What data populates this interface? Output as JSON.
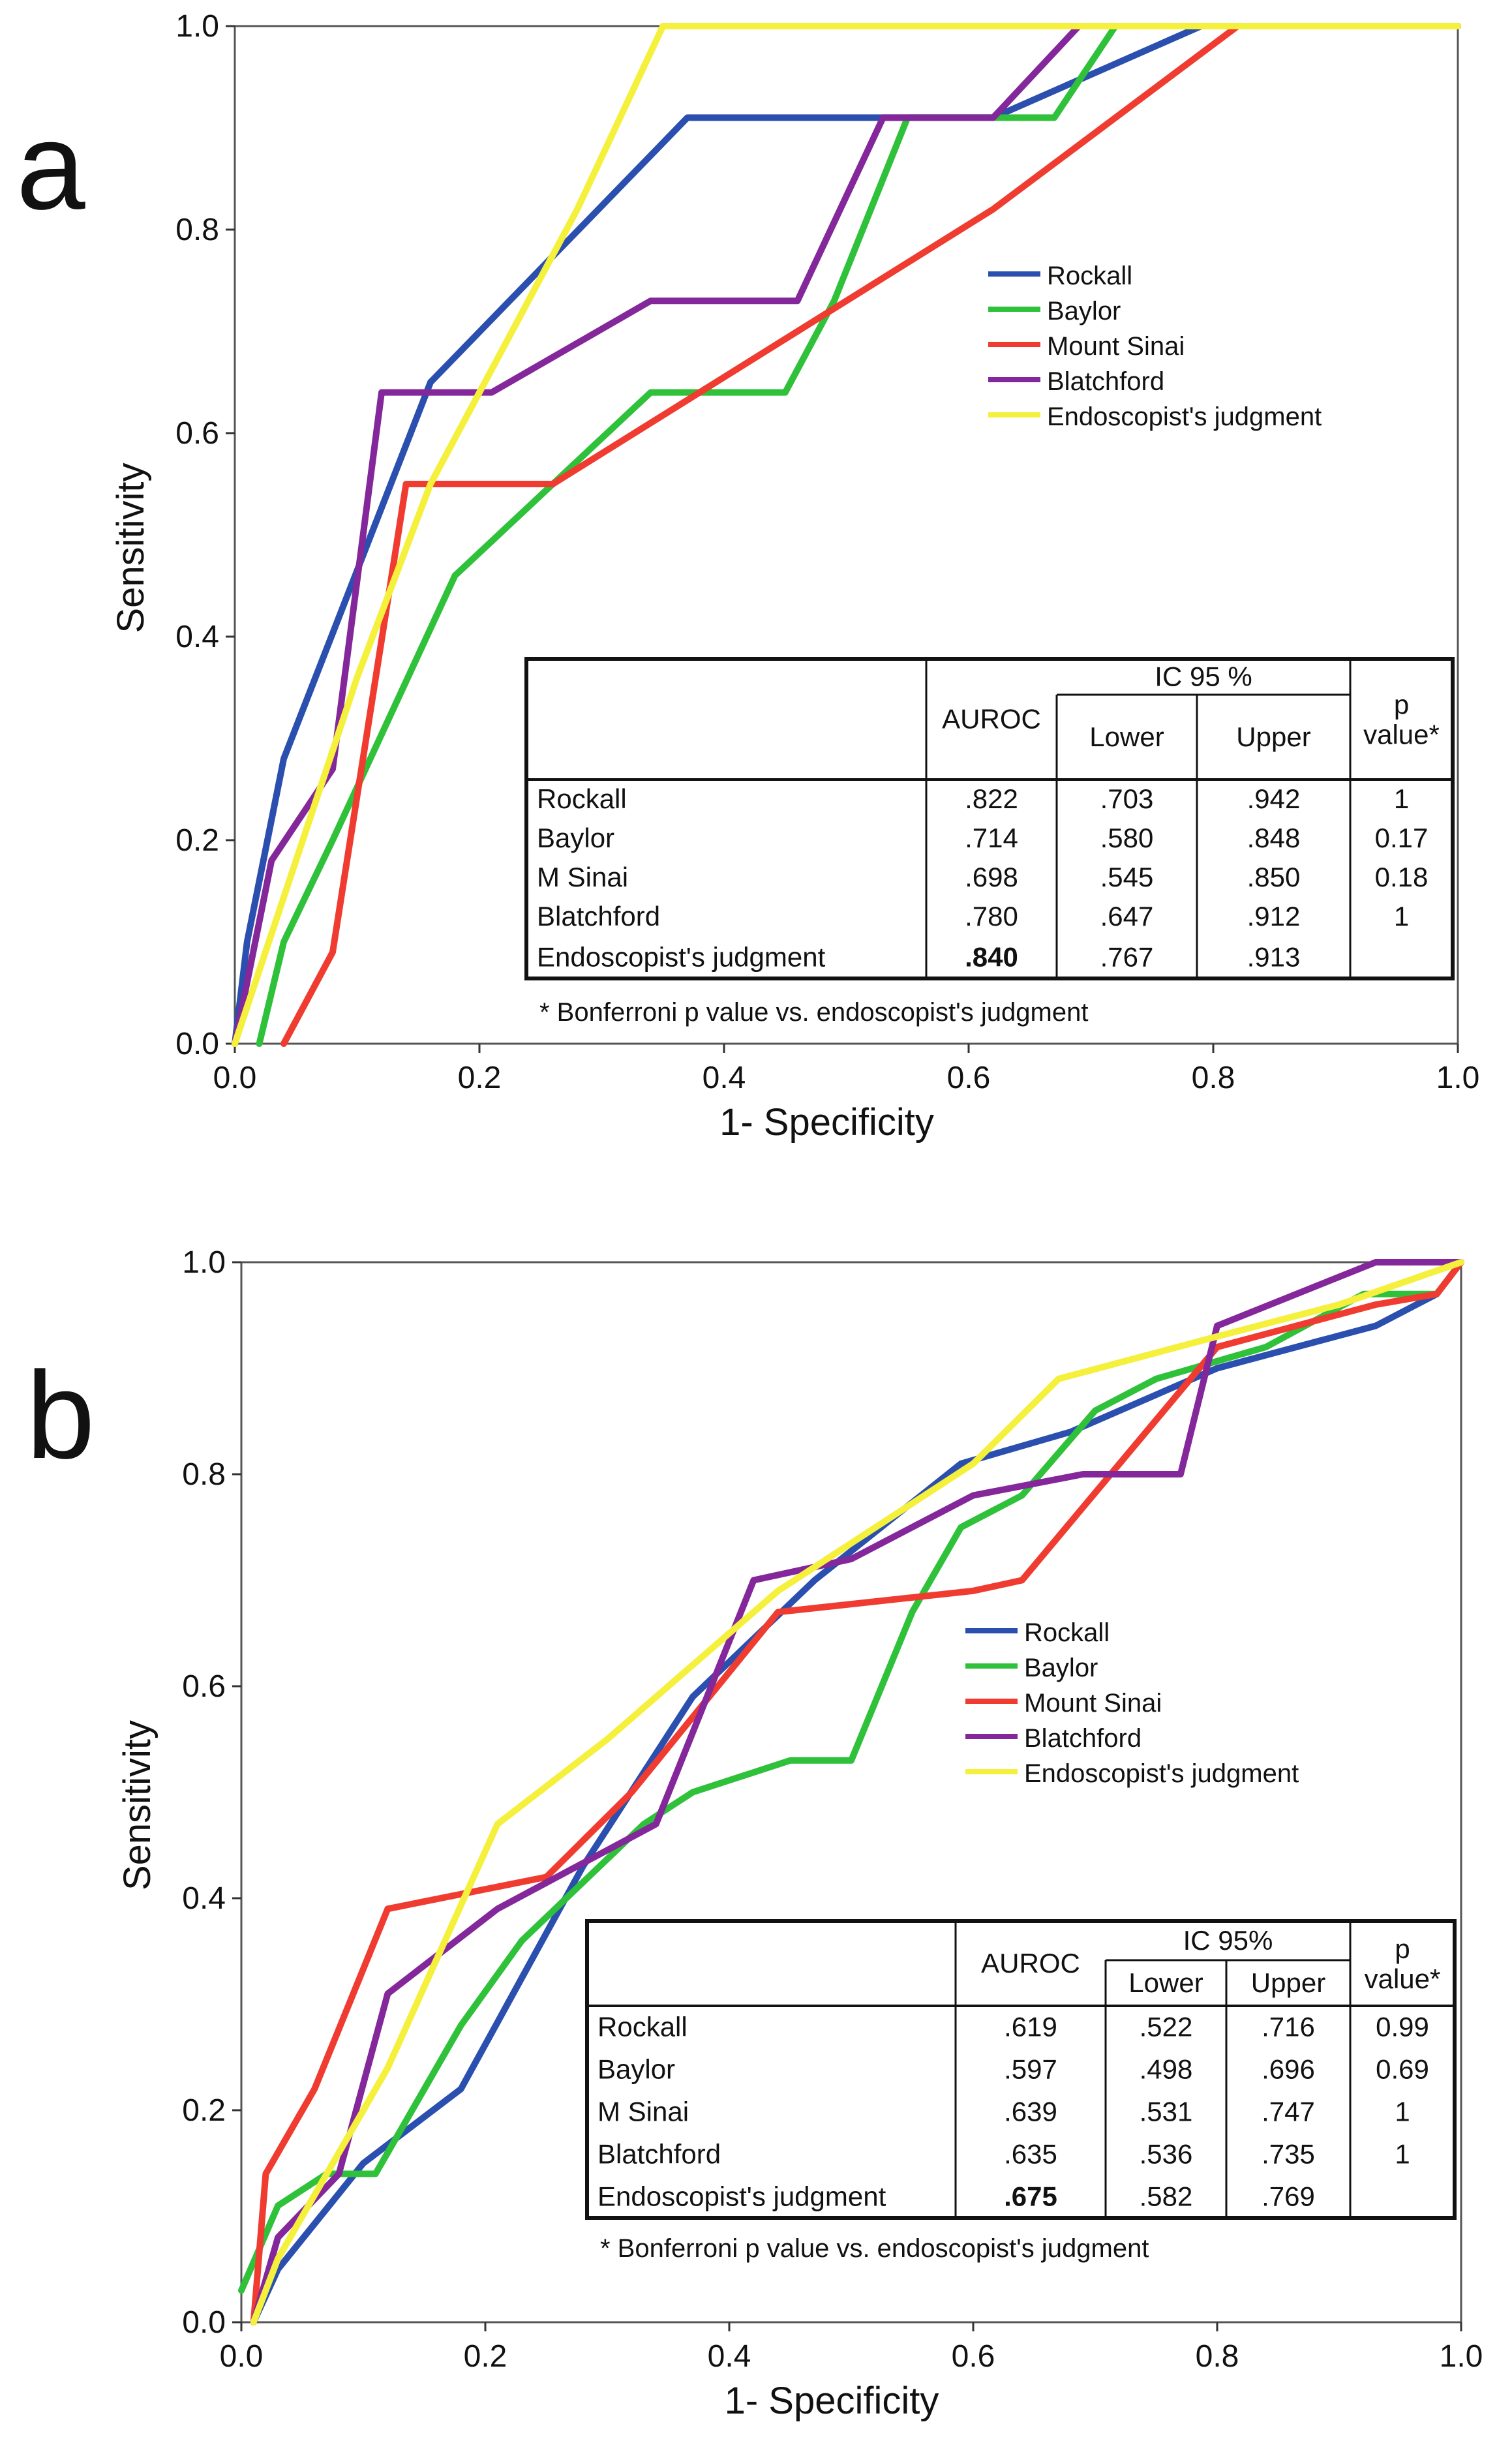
{
  "chart_data": [
    {
      "type": "line",
      "panel_label": "a",
      "xlabel": "1- Specificity",
      "ylabel": "Sensitivity",
      "xlim": [
        0,
        1
      ],
      "ylim": [
        0,
        1
      ],
      "x_ticks": [
        "0.0",
        "0.2",
        "0.4",
        "0.6",
        "0.8",
        "1.0"
      ],
      "y_ticks": [
        "0.0",
        "0.2",
        "0.4",
        "0.6",
        "0.8",
        "1.0"
      ],
      "legend_position": "right",
      "series": [
        {
          "name": "Rockall",
          "color": "#2a4fae",
          "x": [
            0,
            0.01,
            0.04,
            0.16,
            0.37,
            0.62,
            0.79,
            1.0
          ],
          "y": [
            0,
            0.1,
            0.28,
            0.65,
            0.91,
            0.91,
            1.0,
            1.0
          ]
        },
        {
          "name": "Baylor",
          "color": "#2fc13a",
          "x": [
            0.02,
            0.04,
            0.08,
            0.18,
            0.34,
            0.45,
            0.49,
            0.55,
            0.62,
            0.67,
            0.72,
            1.0
          ],
          "y": [
            0,
            0.1,
            0.2,
            0.46,
            0.64,
            0.64,
            0.73,
            0.91,
            0.91,
            0.91,
            1.0,
            1.0
          ]
        },
        {
          "name": "Mount Sinai",
          "color": "#f03b30",
          "x": [
            0.04,
            0.08,
            0.14,
            0.26,
            0.5,
            0.62,
            0.82,
            1.0
          ],
          "y": [
            0,
            0.09,
            0.55,
            0.55,
            0.73,
            0.82,
            1.0,
            1.0
          ]
        },
        {
          "name": "Blatchford",
          "color": "#83279a",
          "x": [
            0,
            0.03,
            0.08,
            0.12,
            0.21,
            0.34,
            0.46,
            0.53,
            0.62,
            0.69,
            1.0
          ],
          "y": [
            0,
            0.18,
            0.27,
            0.64,
            0.64,
            0.73,
            0.73,
            0.91,
            0.91,
            1.0,
            1.0
          ]
        },
        {
          "name": "Endoscopist's judgment",
          "color": "#f4f03c",
          "x": [
            0,
            0.05,
            0.1,
            0.16,
            0.28,
            0.35,
            1.0
          ],
          "y": [
            0,
            0.18,
            0.36,
            0.55,
            0.82,
            1.0,
            1.0
          ]
        }
      ],
      "table": {
        "header_auroc": "AUROC",
        "header_ic": "IC 95 %",
        "header_lower": "Lower",
        "header_upper": "Upper",
        "header_p_line1": "p",
        "header_p_line2": "value*",
        "rows": [
          {
            "name": "Rockall",
            "auroc": ".822",
            "lower": ".703",
            "upper": ".942",
            "p": "1"
          },
          {
            "name": "Baylor",
            "auroc": ".714",
            "lower": ".580",
            "upper": ".848",
            "p": "0.17"
          },
          {
            "name": "M Sinai",
            "auroc": ".698",
            "lower": ".545",
            "upper": ".850",
            "p": "0.18"
          },
          {
            "name": "Blatchford",
            "auroc": ".780",
            "lower": ".647",
            "upper": ".912",
            "p": "1"
          },
          {
            "name": "Endoscopist's judgment",
            "auroc": ".840",
            "lower": ".767",
            "upper": ".913",
            "p": ""
          }
        ],
        "footnote": "* Bonferroni p value vs. endoscopist's judgment"
      }
    },
    {
      "type": "line",
      "panel_label": "b",
      "xlabel": "1- Specificity",
      "ylabel": "Sensitivity",
      "xlim": [
        0,
        1
      ],
      "ylim": [
        0,
        1
      ],
      "x_ticks": [
        "0.0",
        "0.2",
        "0.4",
        "0.6",
        "0.8",
        "1.0"
      ],
      "y_ticks": [
        "0.0",
        "0.2",
        "0.4",
        "0.6",
        "0.8",
        "1.0"
      ],
      "legend_position": "right",
      "series": [
        {
          "name": "Rockall",
          "color": "#2a4fae",
          "x": [
            0.01,
            0.03,
            0.1,
            0.18,
            0.28,
            0.37,
            0.47,
            0.59,
            0.68,
            0.8,
            0.93,
            0.98,
            1.0
          ],
          "y": [
            0.0,
            0.05,
            0.15,
            0.22,
            0.43,
            0.59,
            0.7,
            0.81,
            0.84,
            0.9,
            0.94,
            0.97,
            1.0
          ]
        },
        {
          "name": "Baylor",
          "color": "#2fc13a",
          "x": [
            0,
            0.03,
            0.07,
            0.11,
            0.18,
            0.23,
            0.33,
            0.37,
            0.45,
            0.5,
            0.55,
            0.59,
            0.64,
            0.7,
            0.75,
            0.84,
            0.92,
            0.98,
            1.0
          ],
          "y": [
            0.03,
            0.11,
            0.14,
            0.14,
            0.28,
            0.36,
            0.47,
            0.5,
            0.53,
            0.53,
            0.67,
            0.75,
            0.78,
            0.86,
            0.89,
            0.92,
            0.97,
            0.97,
            1.0
          ]
        },
        {
          "name": "Mount Sinai",
          "color": "#f03b30",
          "x": [
            0.01,
            0.02,
            0.06,
            0.12,
            0.25,
            0.32,
            0.44,
            0.6,
            0.64,
            0.8,
            0.93,
            0.98,
            1.0
          ],
          "y": [
            0.0,
            0.14,
            0.22,
            0.39,
            0.42,
            0.5,
            0.67,
            0.69,
            0.7,
            0.92,
            0.96,
            0.97,
            1.0
          ]
        },
        {
          "name": "Blatchford",
          "color": "#83279a",
          "x": [
            0.01,
            0.03,
            0.08,
            0.12,
            0.21,
            0.34,
            0.42,
            0.5,
            0.6,
            0.69,
            0.77,
            0.8,
            0.93,
            1.0
          ],
          "y": [
            0.0,
            0.08,
            0.14,
            0.31,
            0.39,
            0.47,
            0.7,
            0.72,
            0.78,
            0.8,
            0.8,
            0.94,
            1.0,
            1.0
          ]
        },
        {
          "name": "Endoscopist's judgment",
          "color": "#f4f03c",
          "x": [
            0.01,
            0.03,
            0.12,
            0.21,
            0.3,
            0.44,
            0.6,
            0.67,
            0.8,
            0.9,
            1.0
          ],
          "y": [
            0.0,
            0.06,
            0.24,
            0.47,
            0.55,
            0.69,
            0.81,
            0.89,
            0.93,
            0.96,
            1.0
          ]
        }
      ],
      "table": {
        "header_auroc": "AUROC",
        "header_ic": "IC 95%",
        "header_lower": "Lower",
        "header_upper": "Upper",
        "header_p_line1": "p",
        "header_p_line2": "value*",
        "rows": [
          {
            "name": "Rockall",
            "auroc": ".619",
            "lower": ".522",
            "upper": ".716",
            "p": "0.99"
          },
          {
            "name": "Baylor",
            "auroc": ".597",
            "lower": ".498",
            "upper": ".696",
            "p": "0.69"
          },
          {
            "name": "M Sinai",
            "auroc": ".639",
            "lower": ".531",
            "upper": ".747",
            "p": "1"
          },
          {
            "name": "Blatchford",
            "auroc": ".635",
            "lower": ".536",
            "upper": ".735",
            "p": "1"
          },
          {
            "name": "Endoscopist's judgment",
            "auroc": ".675",
            "lower": ".582",
            "upper": ".769",
            "p": ""
          }
        ],
        "footnote": "* Bonferroni p value vs. endoscopist's judgment"
      }
    }
  ]
}
